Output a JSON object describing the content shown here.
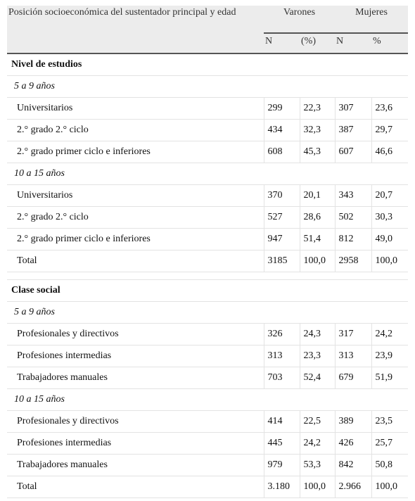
{
  "header": {
    "col0": "Posición socioeconómica del sustentador principal y edad",
    "varones": "Varones",
    "mujeres": "Mujeres",
    "sub": [
      "N",
      "(%)",
      "N",
      "%"
    ]
  },
  "sections": [
    {
      "title": "Nivel de estudios",
      "groups": [
        {
          "label": "5 a 9 años",
          "rows": [
            [
              "Universitarios",
              "299",
              "22,3",
              "307",
              "23,6"
            ],
            [
              "2.° grado 2.° ciclo",
              "434",
              "32,3",
              "387",
              "29,7"
            ],
            [
              "2.° grado primer ciclo e inferiores",
              "608",
              "45,3",
              "607",
              "46,6"
            ]
          ]
        },
        {
          "label": "10 a 15 años",
          "rows": [
            [
              "Universitarios",
              "370",
              "20,1",
              "343",
              "20,7"
            ],
            [
              "2.° grado 2.° ciclo",
              "527",
              "28,6",
              "502",
              "30,3"
            ],
            [
              "2.° grado primer ciclo e inferiores",
              "947",
              "51,4",
              "812",
              "49,0"
            ]
          ]
        }
      ],
      "total": [
        "Total",
        "3185",
        "100,0",
        "2958",
        "100,0"
      ]
    },
    {
      "title": "Clase social",
      "groups": [
        {
          "label": "5 a 9 años",
          "rows": [
            [
              "Profesionales y directivos",
              "326",
              "24,3",
              "317",
              "24,2"
            ],
            [
              "Profesiones intermedias",
              "313",
              "23,3",
              "313",
              "23,9"
            ],
            [
              "Trabajadores manuales",
              "703",
              "52,4",
              "679",
              "51,9"
            ]
          ]
        },
        {
          "label": "10 a 15 años",
          "rows": [
            [
              "Profesionales y directivos",
              "414",
              "22,5",
              "389",
              "23,5"
            ],
            [
              "Profesiones intermedias",
              "445",
              "24,2",
              "426",
              "25,7"
            ],
            [
              "Trabajadores manuales",
              "979",
              "53,3",
              "842",
              "50,8"
            ]
          ]
        }
      ],
      "total": [
        "Total",
        "3.180",
        "100,0",
        "2.966",
        "100,0"
      ]
    }
  ]
}
